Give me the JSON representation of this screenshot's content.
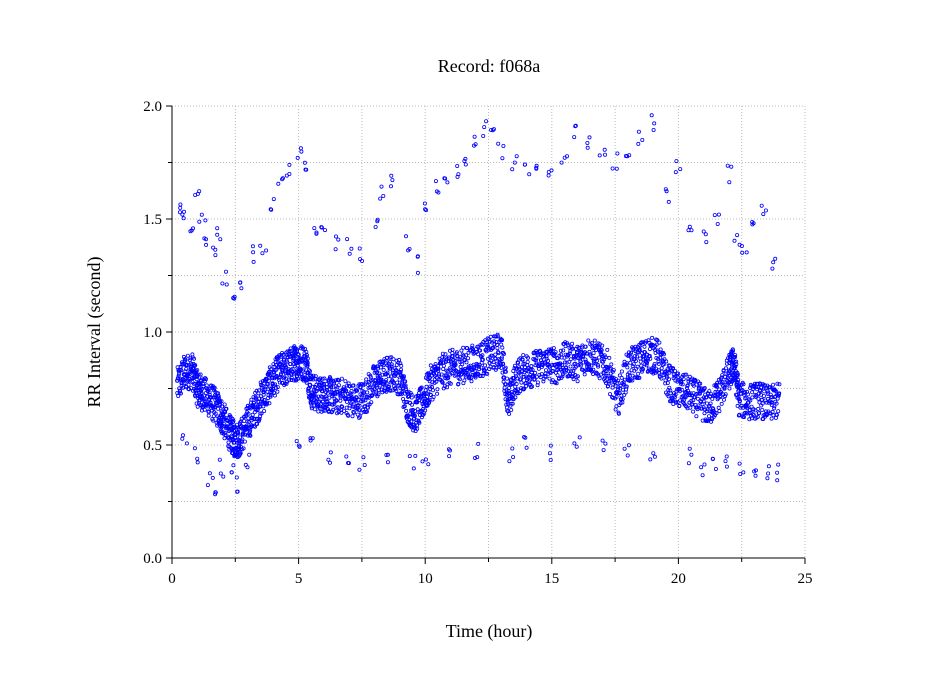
{
  "chart_data": {
    "type": "scatter",
    "title": "Record:  f068a",
    "xlabel": "Time (hour)",
    "ylabel": "RR Interval (second)",
    "xlim": [
      0,
      25
    ],
    "ylim": [
      0,
      2.0
    ],
    "xticks": [
      0,
      5,
      10,
      15,
      20,
      25
    ],
    "xtick_labels": [
      "0",
      "5",
      "10",
      "15",
      "20",
      "25"
    ],
    "yticks": [
      0.0,
      0.5,
      1.0,
      1.5,
      2.0
    ],
    "ytick_labels": [
      "0.0",
      "0.5",
      "1.0",
      "1.5",
      "2.0"
    ],
    "grid": true,
    "marker_color": "#0000ff",
    "marker": "hollow-circle",
    "series": [
      {
        "main_trend": [
          [
            0.2,
            0.76
          ],
          [
            0.5,
            0.82
          ],
          [
            0.8,
            0.83
          ],
          [
            1.0,
            0.75
          ],
          [
            1.2,
            0.73
          ],
          [
            1.5,
            0.7
          ],
          [
            1.8,
            0.66
          ],
          [
            2.0,
            0.62
          ],
          [
            2.3,
            0.55
          ],
          [
            2.5,
            0.52
          ],
          [
            2.7,
            0.53
          ],
          [
            3.0,
            0.6
          ],
          [
            3.3,
            0.66
          ],
          [
            3.6,
            0.72
          ],
          [
            3.9,
            0.77
          ],
          [
            4.2,
            0.82
          ],
          [
            4.5,
            0.84
          ],
          [
            4.8,
            0.86
          ],
          [
            5.0,
            0.87
          ],
          [
            5.3,
            0.86
          ],
          [
            5.5,
            0.74
          ],
          [
            5.8,
            0.72
          ],
          [
            6.1,
            0.73
          ],
          [
            6.4,
            0.71
          ],
          [
            6.8,
            0.72
          ],
          [
            7.2,
            0.69
          ],
          [
            7.6,
            0.71
          ],
          [
            8.0,
            0.78
          ],
          [
            8.3,
            0.8
          ],
          [
            8.6,
            0.82
          ],
          [
            9.0,
            0.8
          ],
          [
            9.3,
            0.68
          ],
          [
            9.6,
            0.63
          ],
          [
            9.9,
            0.69
          ],
          [
            10.2,
            0.77
          ],
          [
            10.6,
            0.82
          ],
          [
            11.0,
            0.84
          ],
          [
            11.4,
            0.85
          ],
          [
            11.8,
            0.86
          ],
          [
            12.2,
            0.88
          ],
          [
            12.6,
            0.9
          ],
          [
            13.0,
            0.92
          ],
          [
            13.3,
            0.68
          ],
          [
            13.6,
            0.8
          ],
          [
            14.0,
            0.83
          ],
          [
            14.4,
            0.84
          ],
          [
            14.8,
            0.86
          ],
          [
            15.2,
            0.85
          ],
          [
            15.6,
            0.88
          ],
          [
            16.0,
            0.86
          ],
          [
            16.4,
            0.9
          ],
          [
            16.8,
            0.88
          ],
          [
            17.2,
            0.84
          ],
          [
            17.6,
            0.7
          ],
          [
            18.0,
            0.84
          ],
          [
            18.4,
            0.87
          ],
          [
            18.8,
            0.9
          ],
          [
            19.2,
            0.89
          ],
          [
            19.6,
            0.78
          ],
          [
            20.0,
            0.74
          ],
          [
            20.4,
            0.73
          ],
          [
            20.8,
            0.7
          ],
          [
            21.2,
            0.66
          ],
          [
            21.6,
            0.72
          ],
          [
            22.0,
            0.82
          ],
          [
            22.2,
            0.86
          ],
          [
            22.4,
            0.7
          ],
          [
            22.8,
            0.69
          ],
          [
            23.2,
            0.7
          ],
          [
            23.6,
            0.68
          ],
          [
            24.0,
            0.7
          ]
        ],
        "upper_cluster": [
          [
            0.3,
            1.55
          ],
          [
            0.5,
            1.5
          ],
          [
            0.8,
            1.45
          ],
          [
            1.0,
            1.6
          ],
          [
            1.2,
            1.52
          ],
          [
            1.4,
            1.42
          ],
          [
            1.6,
            1.38
          ],
          [
            1.8,
            1.45
          ],
          [
            2.1,
            1.25
          ],
          [
            2.5,
            1.15
          ],
          [
            2.8,
            1.2
          ],
          [
            3.2,
            1.35
          ],
          [
            3.6,
            1.38
          ],
          [
            4.0,
            1.55
          ],
          [
            4.3,
            1.65
          ],
          [
            4.6,
            1.7
          ],
          [
            5.0,
            1.78
          ],
          [
            5.3,
            1.72
          ],
          [
            5.7,
            1.42
          ],
          [
            6.0,
            1.45
          ],
          [
            6.5,
            1.4
          ],
          [
            7.0,
            1.38
          ],
          [
            7.5,
            1.35
          ],
          [
            8.0,
            1.5
          ],
          [
            8.3,
            1.62
          ],
          [
            8.7,
            1.67
          ],
          [
            9.3,
            1.4
          ],
          [
            9.7,
            1.3
          ],
          [
            10.0,
            1.55
          ],
          [
            10.4,
            1.63
          ],
          [
            10.8,
            1.66
          ],
          [
            11.2,
            1.7
          ],
          [
            11.6,
            1.78
          ],
          [
            12.0,
            1.85
          ],
          [
            12.3,
            1.9
          ],
          [
            12.7,
            1.88
          ],
          [
            13.0,
            1.8
          ],
          [
            13.5,
            1.75
          ],
          [
            14.0,
            1.72
          ],
          [
            14.5,
            1.7
          ],
          [
            15.0,
            1.68
          ],
          [
            15.5,
            1.78
          ],
          [
            16.0,
            1.88
          ],
          [
            16.5,
            1.85
          ],
          [
            17.0,
            1.82
          ],
          [
            17.5,
            1.75
          ],
          [
            18.0,
            1.8
          ],
          [
            18.5,
            1.86
          ],
          [
            19.0,
            1.92
          ],
          [
            19.5,
            1.6
          ],
          [
            20.0,
            1.72
          ],
          [
            20.5,
            1.48
          ],
          [
            21.0,
            1.42
          ],
          [
            21.5,
            1.5
          ],
          [
            22.0,
            1.7
          ],
          [
            22.3,
            1.4
          ],
          [
            22.6,
            1.35
          ],
          [
            23.0,
            1.45
          ],
          [
            23.4,
            1.55
          ],
          [
            23.8,
            1.3
          ]
        ],
        "lower_cluster": [
          [
            0.5,
            0.52
          ],
          [
            1.0,
            0.45
          ],
          [
            1.5,
            0.35
          ],
          [
            1.8,
            0.3
          ],
          [
            2.0,
            0.4
          ],
          [
            2.4,
            0.38
          ],
          [
            2.6,
            0.33
          ],
          [
            3.0,
            0.42
          ],
          [
            5.0,
            0.48
          ],
          [
            5.5,
            0.5
          ],
          [
            6.2,
            0.44
          ],
          [
            7.0,
            0.44
          ],
          [
            7.5,
            0.42
          ],
          [
            8.5,
            0.45
          ],
          [
            9.5,
            0.42
          ],
          [
            10.0,
            0.44
          ],
          [
            11.0,
            0.45
          ],
          [
            12.0,
            0.48
          ],
          [
            13.4,
            0.45
          ],
          [
            14.0,
            0.5
          ],
          [
            15.0,
            0.47
          ],
          [
            16.0,
            0.5
          ],
          [
            17.0,
            0.48
          ],
          [
            18.0,
            0.47
          ],
          [
            19.0,
            0.45
          ],
          [
            20.5,
            0.45
          ],
          [
            21.0,
            0.4
          ],
          [
            21.4,
            0.41
          ],
          [
            21.8,
            0.42
          ],
          [
            22.5,
            0.4
          ],
          [
            23.0,
            0.4
          ],
          [
            23.5,
            0.39
          ],
          [
            24.0,
            0.38
          ]
        ]
      }
    ]
  }
}
